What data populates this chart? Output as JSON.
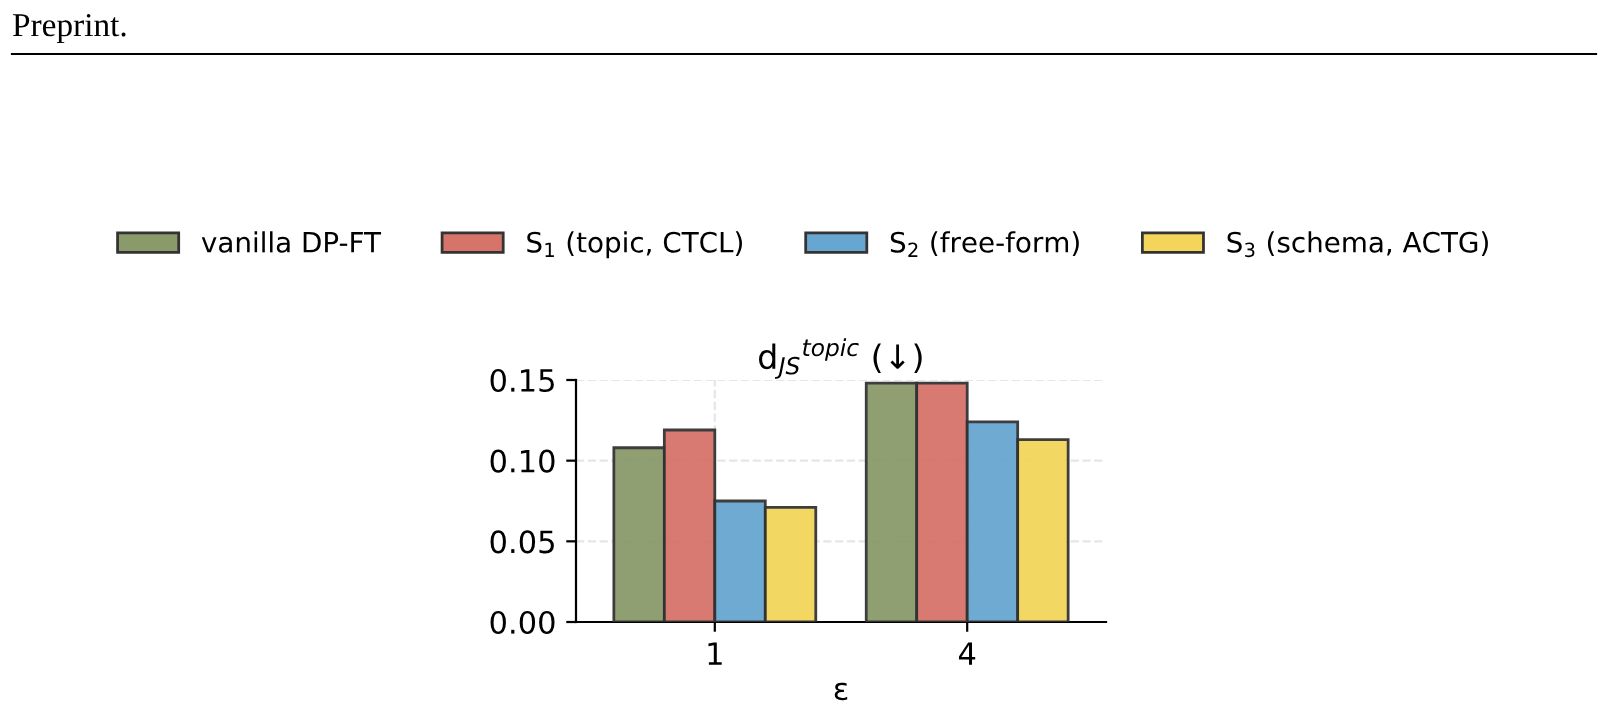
{
  "chart_data": {
    "type": "bar",
    "title": "d$_{JS}$$^{topic}$ (↓)",
    "xlabel": "ε",
    "categories": [
      "1",
      "4"
    ],
    "series": [
      {
        "name": "vanilla DP-FT",
        "color": "#8a9a6b",
        "values": [
          0.108,
          0.148
        ]
      },
      {
        "name": "S$_{1}$ (topic, CTCL)",
        "color": "#d6736a",
        "values": [
          0.119,
          0.148
        ]
      },
      {
        "name": "S$_{2}$ (free-form)",
        "color": "#67a6d0",
        "values": [
          0.075,
          0.124
        ]
      },
      {
        "name": "S$_{3}$ (schema, ACTG)",
        "color": "#f3d55b",
        "values": [
          0.071,
          0.113
        ]
      }
    ],
    "ylim": [
      0,
      0.15
    ],
    "yticks": [
      {
        "value": 0,
        "label": "0.00"
      },
      {
        "value": 0.05,
        "label": "0.05"
      },
      {
        "value": 0.1,
        "label": "0.10"
      },
      {
        "value": 0.15,
        "label": "0.15"
      }
    ],
    "grid": true,
    "legend": "top",
    "annotations": [
      "Preprint."
    ]
  }
}
